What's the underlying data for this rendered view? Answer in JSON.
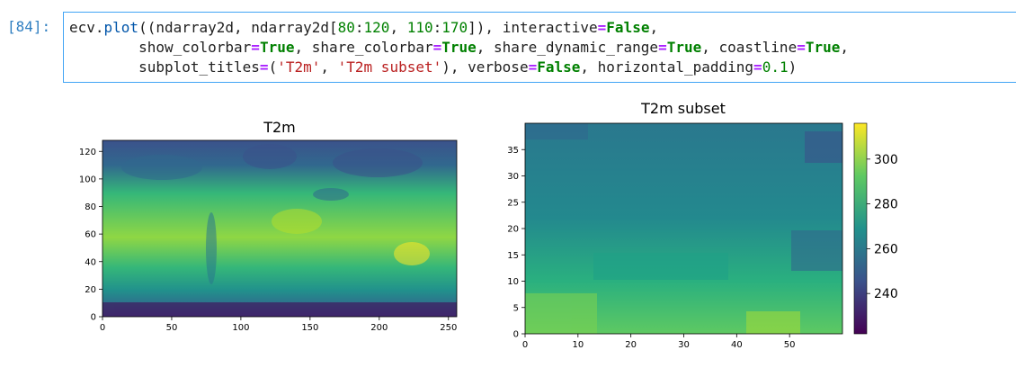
{
  "cell": {
    "prompt": "[84]:",
    "code": {
      "line1": {
        "a": "ecv.",
        "fn": "plot",
        "b": "((ndarray2d, ndarray2d[",
        "n1": "80",
        "c1": ":",
        "n2": "120",
        "c2": ", ",
        "n3": "110",
        "c3": ":",
        "n4": "170",
        "c4": "]), interactive",
        "eq": "=",
        "v": "False",
        "end": ","
      },
      "line2": {
        "k1": "show_colorbar",
        "v1": "True",
        "k2": ", share_colorbar",
        "v2": "True",
        "k3": ", share_dynamic_range",
        "v3": "True",
        "k4": ", coastline",
        "v4": "True",
        "end": ","
      },
      "line3": {
        "k1": "subplot_titles",
        "p1": "(",
        "s1": "'T2m'",
        "c": ", ",
        "s2": "'T2m subset'",
        "p2": ")",
        "k2": ", verbose",
        "v2": "False",
        "k3": ", horizontal_padding",
        "v3": "0.1",
        "end": ")"
      }
    }
  },
  "colors": {
    "viridis_low": "#440154",
    "viridis_mid": "#21918c",
    "viridis_high": "#fde725",
    "frame": "#42a5f5"
  },
  "chart_data": [
    {
      "type": "heatmap",
      "title": "T2m",
      "xlim": [
        0,
        256
      ],
      "ylim": [
        0,
        128
      ],
      "xticks": [
        0,
        50,
        100,
        150,
        200,
        250
      ],
      "yticks": [
        0,
        20,
        40,
        60,
        80,
        100,
        120
      ],
      "colorbar": false
    },
    {
      "type": "heatmap",
      "title": "T2m subset",
      "xlim": [
        0,
        60
      ],
      "ylim": [
        0,
        40
      ],
      "xticks": [
        0,
        10,
        20,
        30,
        40,
        50
      ],
      "yticks": [
        0,
        5,
        10,
        15,
        20,
        25,
        30,
        35
      ],
      "colorbar": true,
      "colorbar_range": [
        222,
        316
      ],
      "colorbar_ticks": [
        240,
        260,
        280,
        300
      ]
    }
  ]
}
